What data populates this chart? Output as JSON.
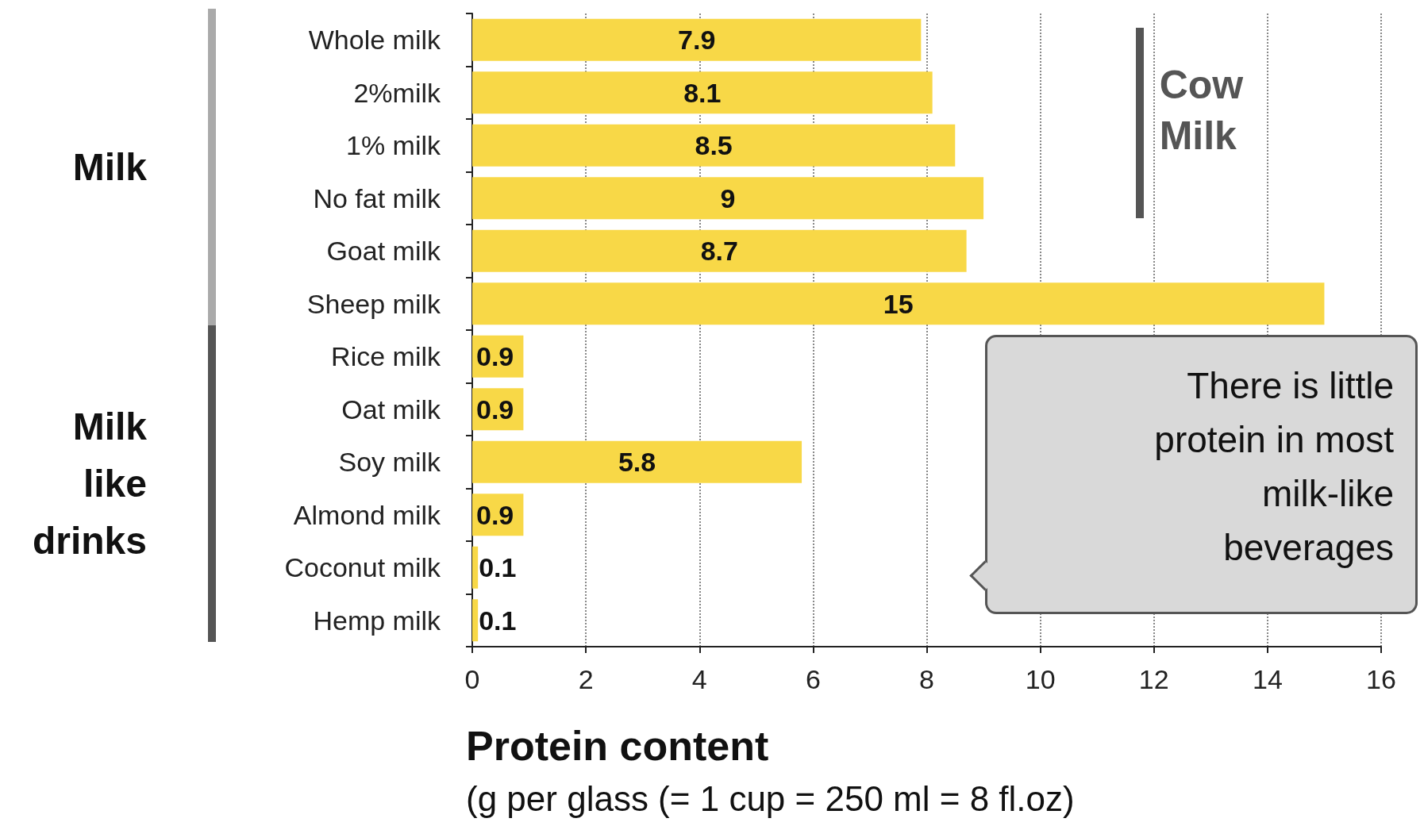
{
  "chart_data": {
    "type": "bar",
    "orientation": "horizontal",
    "categories": [
      "Whole milk",
      "2%milk",
      "1% milk",
      "No fat milk",
      "Goat milk",
      "Sheep milk",
      "Rice milk",
      "Oat milk",
      "Soy milk",
      "Almond milk",
      "Coconut milk",
      "Hemp milk"
    ],
    "values": [
      7.9,
      8.1,
      8.5,
      9,
      8.7,
      15,
      0.9,
      0.9,
      5.8,
      0.9,
      0.1,
      0.1
    ],
    "color": "#f8d847",
    "xlim": [
      0,
      16
    ],
    "xticks": [
      0,
      2,
      4,
      6,
      8,
      10,
      12,
      14,
      16
    ],
    "grid": "x",
    "data_labels": true,
    "xlabel": "Protein content",
    "annotations": [
      "Milk",
      "Milk like drinks",
      "Cow Milk",
      "There is little protein in most milk-like beverages",
      "(g per glass (= 1 cup = 250 ml = 8 fl.oz)"
    ]
  }
}
